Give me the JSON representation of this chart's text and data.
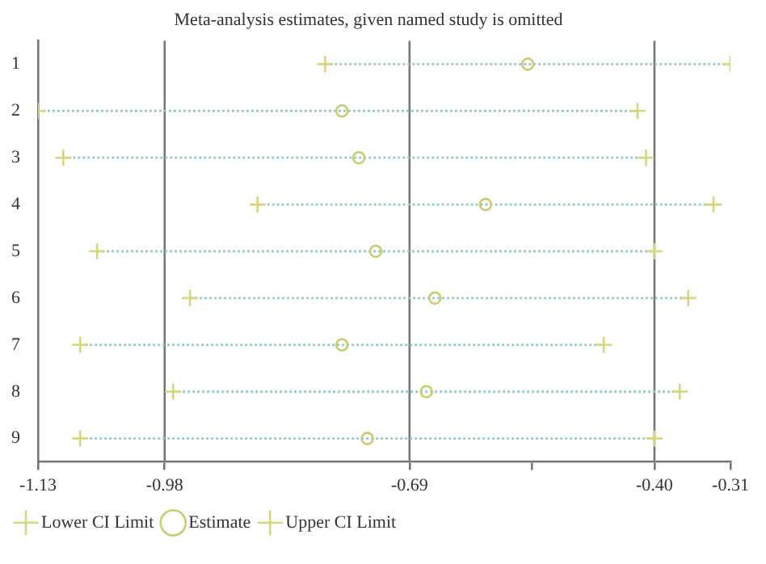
{
  "chart_data": {
    "type": "scatter",
    "orientation": "horizontal",
    "title": "Meta-analysis estimates, given named study is omitted",
    "categories": [
      "1",
      "2",
      "3",
      "4",
      "5",
      "6",
      "7",
      "8",
      "9"
    ],
    "series": [
      {
        "name": "Lower CI Limit",
        "color": "#d6d77a",
        "marker": "cross",
        "values": [
          -0.79,
          -1.13,
          -1.1,
          -0.87,
          -1.06,
          -0.95,
          -1.08,
          -0.97,
          -1.08
        ]
      },
      {
        "name": "Estimate",
        "color": "#c9cc6e",
        "marker": "circle",
        "values": [
          -0.55,
          -0.77,
          -0.75,
          -0.6,
          -0.73,
          -0.66,
          -0.77,
          -0.67,
          -0.74
        ]
      },
      {
        "name": "Upper CI Limit",
        "color": "#d6d77a",
        "marker": "cross",
        "values": [
          -0.31,
          -0.42,
          -0.41,
          -0.33,
          -0.4,
          -0.36,
          -0.46,
          -0.37,
          -0.4
        ]
      }
    ],
    "xlim": [
      -1.13,
      -0.31
    ],
    "xticks": [
      -1.13,
      -0.98,
      -0.69,
      {
        "value": -0.545,
        "label": null
      },
      {
        "value": -0.4,
        "label": "-0.40"
      },
      -0.31
    ],
    "ref_lines": [
      {
        "axis": "x",
        "value": -0.98,
        "color": "#777777"
      },
      {
        "axis": "x",
        "value": -0.69,
        "color": "#777777"
      },
      {
        "axis": "x",
        "value": -0.4,
        "color": "#777777"
      }
    ],
    "legend": "bottom left",
    "line_style": "dotted"
  }
}
